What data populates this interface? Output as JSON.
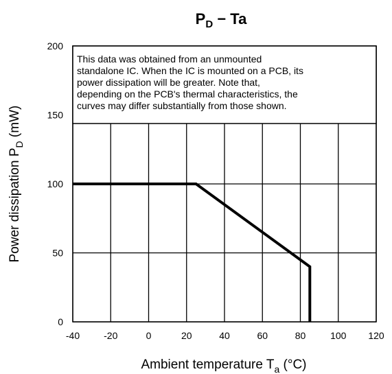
{
  "chart_data": {
    "type": "line",
    "title": {
      "main": "P",
      "sub": "D",
      "rest": " − Ta"
    },
    "xlabel": {
      "main": "Ambient temperature  T",
      "sub": "a",
      "rest": "  (°C)"
    },
    "ylabel": {
      "main": "Power dissipation  P",
      "sub": "D",
      "rest": "  (mW)"
    },
    "xlim": [
      -40,
      120
    ],
    "ylim": [
      0,
      200
    ],
    "xticks": [
      -40,
      -20,
      0,
      20,
      40,
      60,
      80,
      100,
      120
    ],
    "yticks": [
      0,
      50,
      100,
      150,
      200
    ],
    "grid": true,
    "series": [
      {
        "x": [
          -40,
          25,
          85,
          85
        ],
        "y": [
          100,
          100,
          40,
          0
        ]
      }
    ],
    "note_lines": [
      "This data was obtained from an unmounted",
      "standalone IC. When the IC is mounted on a PCB, its",
      "power dissipation will be greater. Note that,",
      "depending on the PCB's thermal characteristics, the",
      "curves may differ substantially from those shown."
    ],
    "colors": {
      "line": "#000000",
      "grid": "#000000"
    }
  }
}
